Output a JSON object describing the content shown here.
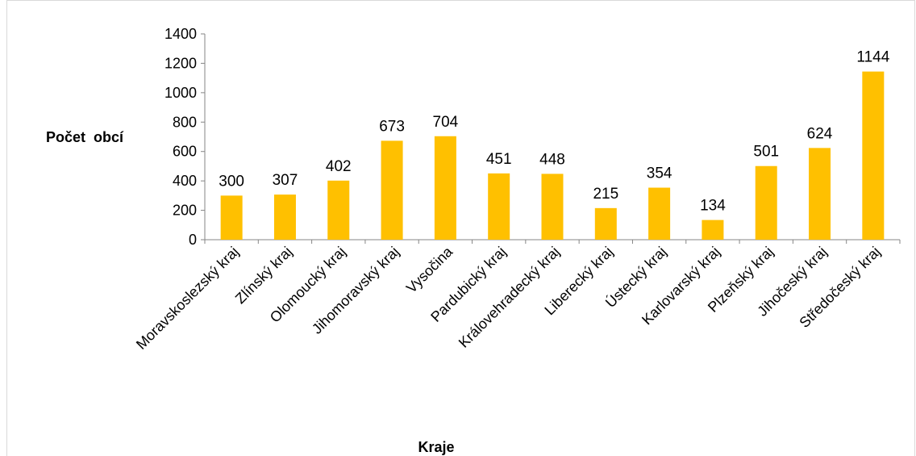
{
  "chart_data": {
    "type": "bar",
    "title": "",
    "xlabel": "Kraje",
    "ylabel": "Počet  obcí",
    "ylim": [
      0,
      1400
    ],
    "yticks": [
      0,
      200,
      400,
      600,
      800,
      1000,
      1200,
      1400
    ],
    "grid": false,
    "legend": "none",
    "bar_color": "#ffc000",
    "categories": [
      "Moravskoslezský kraj",
      "Zlínský kraj",
      "Olomoucký kraj",
      "Jihomoravský kraj",
      "Vysočina",
      "Pardubický kraj",
      "Královehradecký kraj",
      "Liberecký kraj",
      "Ústecký kraj",
      "Karlovarský kraj",
      "Plzeňský kraj",
      "Jihočeský kraj",
      "Středočeský kraj"
    ],
    "values": [
      300,
      307,
      402,
      673,
      704,
      451,
      448,
      215,
      354,
      134,
      501,
      624,
      1144
    ]
  }
}
